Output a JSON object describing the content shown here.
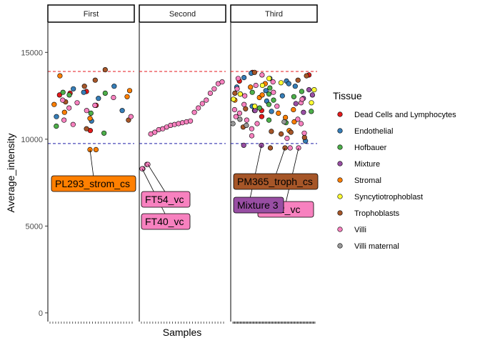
{
  "chart_data": {
    "type": "scatter",
    "facets": [
      "First",
      "Second",
      "Third"
    ],
    "xlabel": "Samples",
    "ylabel": "Average_intensity",
    "ylim": [
      -500,
      16700
    ],
    "yticks": [
      0,
      5000,
      10000,
      15000
    ],
    "upper_line": 13900,
    "lower_line": 9750,
    "legend": {
      "title": "Tissue",
      "placement": "right",
      "items": [
        {
          "name": "Dead Cells and Lymphocytes",
          "color": "#e41a1c"
        },
        {
          "name": "Endothelial",
          "color": "#377eb8"
        },
        {
          "name": "Hofbauer",
          "color": "#4daf4a"
        },
        {
          "name": "Mixture",
          "color": "#984ea3"
        },
        {
          "name": "Stromal",
          "color": "#ff7f00"
        },
        {
          "name": "Syncytiotrophoblast",
          "color": "#ffff33"
        },
        {
          "name": "Trophoblasts",
          "color": "#a65628"
        },
        {
          "name": "Villi",
          "color": "#f781bf"
        },
        {
          "name": "Villi maternal",
          "color": "#999999"
        }
      ]
    },
    "points": {
      "First": [
        [
          "Dead Cells and Lymphocytes",
          [
            10500,
            11950,
            12550,
            12650,
            12750
          ]
        ],
        [
          "Endothelial",
          [
            11050,
            11300,
            11650,
            12350,
            12700,
            12900,
            13050
          ]
        ],
        [
          "Hofbauer",
          [
            10350,
            10750,
            11500,
            12550,
            12650,
            12700
          ]
        ],
        [
          "Stromal",
          [
            9400,
            11200,
            11550,
            12000,
            12450,
            12800,
            13650
          ]
        ],
        [
          "Trophoblasts",
          [
            10600,
            11100,
            12150,
            13050,
            13400,
            14000
          ]
        ],
        [
          "Villi",
          [
            10850,
            11100,
            11300,
            11650,
            11800,
            11950,
            12100,
            12250,
            12400
          ]
        ]
      ],
      "Second": [
        [
          "Villi",
          [
            8300,
            8550,
            10300,
            10400,
            10550,
            10600,
            10700,
            10800,
            10850,
            10900,
            10950,
            11000,
            11050,
            11550,
            11800,
            12050,
            12250,
            12650,
            12900,
            13200,
            13300
          ]
        ]
      ],
      "Third": [
        [
          "Dead Cells and Lymphocytes",
          [
            11300,
            11650,
            13350,
            13700,
            13850
          ]
        ],
        [
          "Endothelial",
          [
            9900,
            11600,
            11900,
            12500,
            12800,
            13050,
            13350,
            13550,
            13800,
            13500,
            12600,
            13000,
            12200,
            13200
          ]
        ],
        [
          "Hofbauer",
          [
            10950,
            11600,
            11800,
            12000,
            12250,
            12600,
            12750,
            12950,
            11100,
            11650,
            12700,
            12450
          ]
        ],
        [
          "Mixture",
          [
            9650,
            11650,
            12050,
            12350,
            12550,
            12850,
            11550
          ]
        ],
        [
          "Stromal",
          [
            11000,
            11250,
            11500,
            12250,
            12400,
            12550,
            13000,
            13200,
            10500,
            11700
          ]
        ],
        [
          "Syncytiotrophoblast",
          [
            11900,
            12100,
            12300,
            13100,
            13250,
            13500,
            12600,
            12850
          ]
        ],
        [
          "Trophoblasts",
          [
            9500,
            10100,
            10300,
            10450,
            10700,
            13400,
            13650,
            13850,
            12650,
            11750,
            10400
          ]
        ],
        [
          "Villi",
          [
            9500,
            10050,
            10350,
            10600,
            10900,
            11100,
            11300,
            11500,
            11700,
            11900,
            12100,
            12300,
            12500,
            12700,
            12900,
            13100,
            13300,
            13500,
            13700,
            10200,
            10900,
            11150,
            12000
          ]
        ],
        [
          "Villi maternal",
          [
            10800,
            10900,
            11000,
            11150
          ]
        ]
      ]
    },
    "annotations": [
      {
        "text": "PL293_strom_cs",
        "facet": "First",
        "point_y": 9400,
        "color": "#ff7f00"
      },
      {
        "text": "FT54_vc",
        "facet": "Second",
        "point_y": 8550,
        "color": "#f781bf"
      },
      {
        "text": "FT40_vc",
        "facet": "Second",
        "point_y": 8300,
        "color": "#f781bf"
      },
      {
        "text": "PM365_troph_cs",
        "facet": "Third",
        "point_y": 9500,
        "color": "#a65628"
      },
      {
        "text": "Mixture 3",
        "facet": "Third",
        "point_y": 9650,
        "color": "#984ea3"
      },
      {
        "text": "FT62_vc",
        "facet": "Third",
        "point_y": 9500,
        "color": "#f781bf"
      }
    ]
  }
}
